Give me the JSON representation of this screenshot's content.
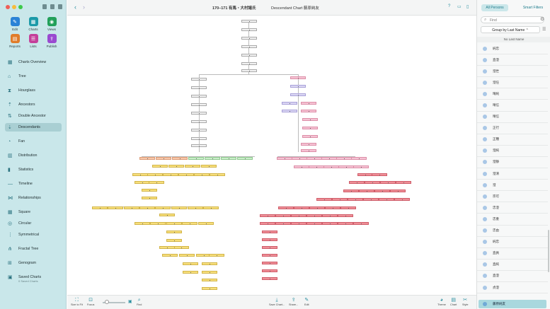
{
  "window": {
    "title_main": "170–171 有馬・大村諸氏",
    "title_chart": "Descendant Chart 藤原純友"
  },
  "sidebar": {
    "grid": [
      {
        "label": "Edit",
        "icon": "pencil-icon",
        "color": "#2a82d6"
      },
      {
        "label": "Charts",
        "icon": "charts-icon",
        "color": "#1c9aa8"
      },
      {
        "label": "Views",
        "icon": "eye-icon",
        "color": "#22a05a"
      },
      {
        "label": "Reports",
        "icon": "reports-icon",
        "color": "#e07c2a"
      },
      {
        "label": "Lists",
        "icon": "lists-icon",
        "color": "#c4409a"
      },
      {
        "label": "Publish",
        "icon": "publish-icon",
        "color": "#9a4ad0"
      }
    ],
    "items": [
      {
        "label": "Charts Overview",
        "icon": "charts-overview-icon"
      },
      {
        "label": "Tree",
        "icon": "tree-icon"
      },
      {
        "label": "Hourglass",
        "icon": "hourglass-icon"
      },
      {
        "label": "Ancestors",
        "icon": "ancestors-icon"
      },
      {
        "label": "Double Ancestor",
        "icon": "double-ancestor-icon"
      },
      {
        "label": "Descendants",
        "icon": "descendants-icon",
        "selected": true
      },
      {
        "label": "Fan",
        "icon": "fan-icon"
      },
      {
        "label": "Distribution",
        "icon": "distribution-icon"
      },
      {
        "label": "Statistics",
        "icon": "statistics-icon"
      },
      {
        "label": "Timeline",
        "icon": "timeline-icon"
      },
      {
        "label": "Relationships",
        "icon": "relationships-icon"
      },
      {
        "label": "Square",
        "icon": "square-icon"
      },
      {
        "label": "Circular",
        "icon": "circular-icon"
      },
      {
        "label": "Symmetrical",
        "icon": "symmetrical-icon"
      },
      {
        "label": "Fractal Tree",
        "icon": "fractal-tree-icon"
      },
      {
        "label": "Genogram",
        "icon": "genogram-icon"
      },
      {
        "label": "Saved Charts",
        "icon": "saved-charts-icon",
        "sub": "0 Saved Charts"
      }
    ]
  },
  "bottombar": {
    "size_to_fit": "Size to Fit",
    "focus": "Focus",
    "find": "Find",
    "save_chart": "Save Chart...",
    "share": "Share...",
    "edit": "Edit",
    "theme": "Theme",
    "chart": "Chart",
    "style": "Style"
  },
  "rightpanel": {
    "tab_all": "All Persons",
    "tab_smart": "Smart Filters",
    "find_placeholder": "Find",
    "group_by": "Group by Last Name",
    "list_header": "No Last Name",
    "persons": [
      "純忠",
      "直澄",
      "澄世",
      "澄任",
      "晴純",
      "晴信",
      "晴信",
      "正行",
      "正種",
      "澄純",
      "澄静",
      "澄清",
      "澄",
      "宗可",
      "忠澄",
      "忠重",
      "忠由",
      "純忠",
      "直員",
      "直純",
      "直澄",
      "貞澄"
    ],
    "selected": "藤原純友"
  },
  "colors": {
    "accent": "#2a8fa0",
    "sidebar_bg": "#c9e7ea",
    "node_yellow": "#f7df7c",
    "node_pink": "#f6c3d4",
    "node_red": "#ef8f97"
  }
}
